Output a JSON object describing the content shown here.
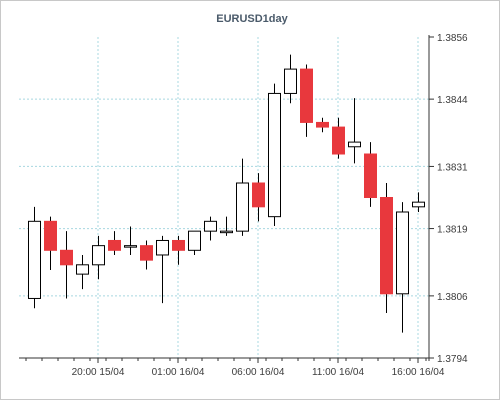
{
  "chart_data": {
    "type": "candlestick",
    "title": "EURUSD1day",
    "xlabel": "",
    "ylabel": "",
    "ylim": [
      1.3794,
      1.3856
    ],
    "yticks": [
      "1.3856",
      "1.3844",
      "1.3831",
      "1.3819",
      "1.3806",
      "1.3794"
    ],
    "xticks": [
      "20:00 15/04",
      "01:00 16/04",
      "06:00 16/04",
      "11:00 16/04",
      "16:00 16/04"
    ],
    "grid": true,
    "bull_color": "#ffffff",
    "bear_color": "#e8383d",
    "candles": [
      {
        "o": 1.38055,
        "h": 1.38232,
        "l": 1.38036,
        "c": 1.38204
      },
      {
        "o": 1.38204,
        "h": 1.38213,
        "l": 1.3811,
        "c": 1.38148
      },
      {
        "o": 1.38148,
        "h": 1.38185,
        "l": 1.38055,
        "c": 1.3812
      },
      {
        "o": 1.38102,
        "h": 1.38139,
        "l": 1.38073,
        "c": 1.3812
      },
      {
        "o": 1.3812,
        "h": 1.38176,
        "l": 1.38092,
        "c": 1.38157
      },
      {
        "o": 1.38167,
        "h": 1.38185,
        "l": 1.38139,
        "c": 1.38148
      },
      {
        "o": 1.38157,
        "h": 1.38194,
        "l": 1.38139,
        "c": 1.38157
      },
      {
        "o": 1.38157,
        "h": 1.38167,
        "l": 1.38111,
        "c": 1.38129
      },
      {
        "o": 1.38139,
        "h": 1.38176,
        "l": 1.38046,
        "c": 1.38167
      },
      {
        "o": 1.38167,
        "h": 1.38176,
        "l": 1.3812,
        "c": 1.38148
      },
      {
        "o": 1.38148,
        "h": 1.38185,
        "l": 1.38139,
        "c": 1.38185
      },
      {
        "o": 1.38185,
        "h": 1.38213,
        "l": 1.38167,
        "c": 1.38204
      },
      {
        "o": 1.38185,
        "h": 1.38213,
        "l": 1.38176,
        "c": 1.38185
      },
      {
        "o": 1.38185,
        "h": 1.38325,
        "l": 1.38176,
        "c": 1.38278
      },
      {
        "o": 1.38278,
        "h": 1.38297,
        "l": 1.38204,
        "c": 1.38232
      },
      {
        "o": 1.38213,
        "h": 1.3847,
        "l": 1.38195,
        "c": 1.38451
      },
      {
        "o": 1.38451,
        "h": 1.38526,
        "l": 1.38432,
        "c": 1.38498
      },
      {
        "o": 1.38498,
        "h": 1.38507,
        "l": 1.38367,
        "c": 1.38395
      },
      {
        "o": 1.38395,
        "h": 1.38404,
        "l": 1.38376,
        "c": 1.38386
      },
      {
        "o": 1.38386,
        "h": 1.38404,
        "l": 1.38325,
        "c": 1.38334
      },
      {
        "o": 1.38348,
        "h": 1.38442,
        "l": 1.38316,
        "c": 1.38357
      },
      {
        "o": 1.38334,
        "h": 1.38357,
        "l": 1.38232,
        "c": 1.3825
      },
      {
        "o": 1.3825,
        "h": 1.38278,
        "l": 1.38027,
        "c": 1.38064
      },
      {
        "o": 1.38064,
        "h": 1.38241,
        "l": 1.37989,
        "c": 1.38222
      },
      {
        "o": 1.38232,
        "h": 1.3826,
        "l": 1.38222,
        "c": 1.38241
      }
    ]
  }
}
